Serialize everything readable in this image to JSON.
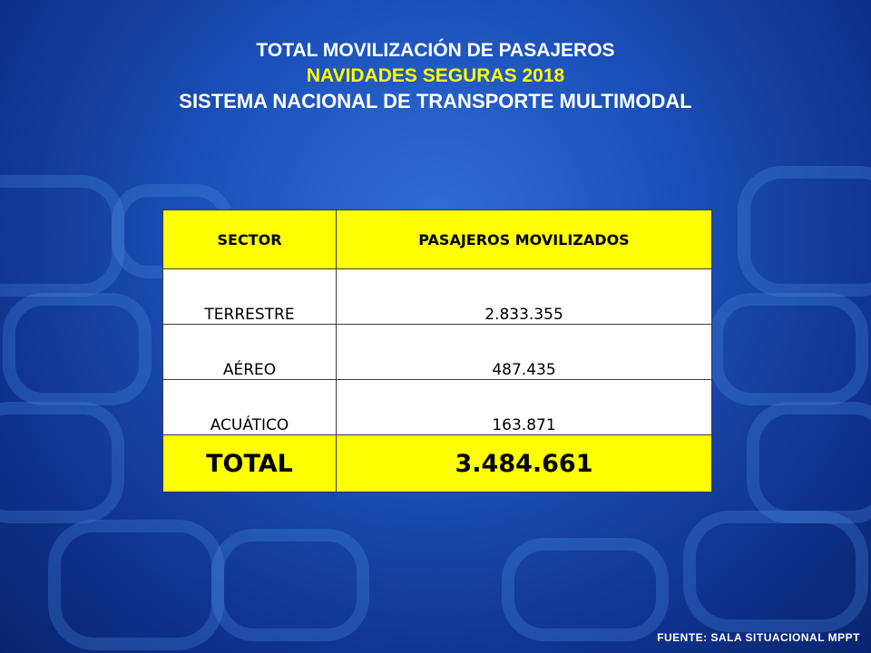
{
  "title": {
    "line1": "TOTAL MOVILIZACIÓN DE PASAJEROS",
    "line2": "NAVIDADES SEGURAS 2018",
    "line3": "SISTEMA NACIONAL DE TRANSPORTE MULTIMODAL"
  },
  "table": {
    "headers": [
      "SECTOR",
      "PASAJEROS MOVILIZADOS"
    ],
    "rows": [
      [
        "TERRESTRE",
        "2.833.355"
      ],
      [
        "AÉREO",
        "487.435"
      ],
      [
        "ACUÁTICO",
        "163.871"
      ]
    ],
    "total": [
      "TOTAL",
      "3.484.661"
    ]
  },
  "source": "FUENTE: SALA SITUACIONAL MPPT",
  "colors": {
    "background": "#1b4fb8",
    "header_fill": "#ffff00",
    "subtitle": "#ffff00",
    "text": "#ffffff"
  }
}
